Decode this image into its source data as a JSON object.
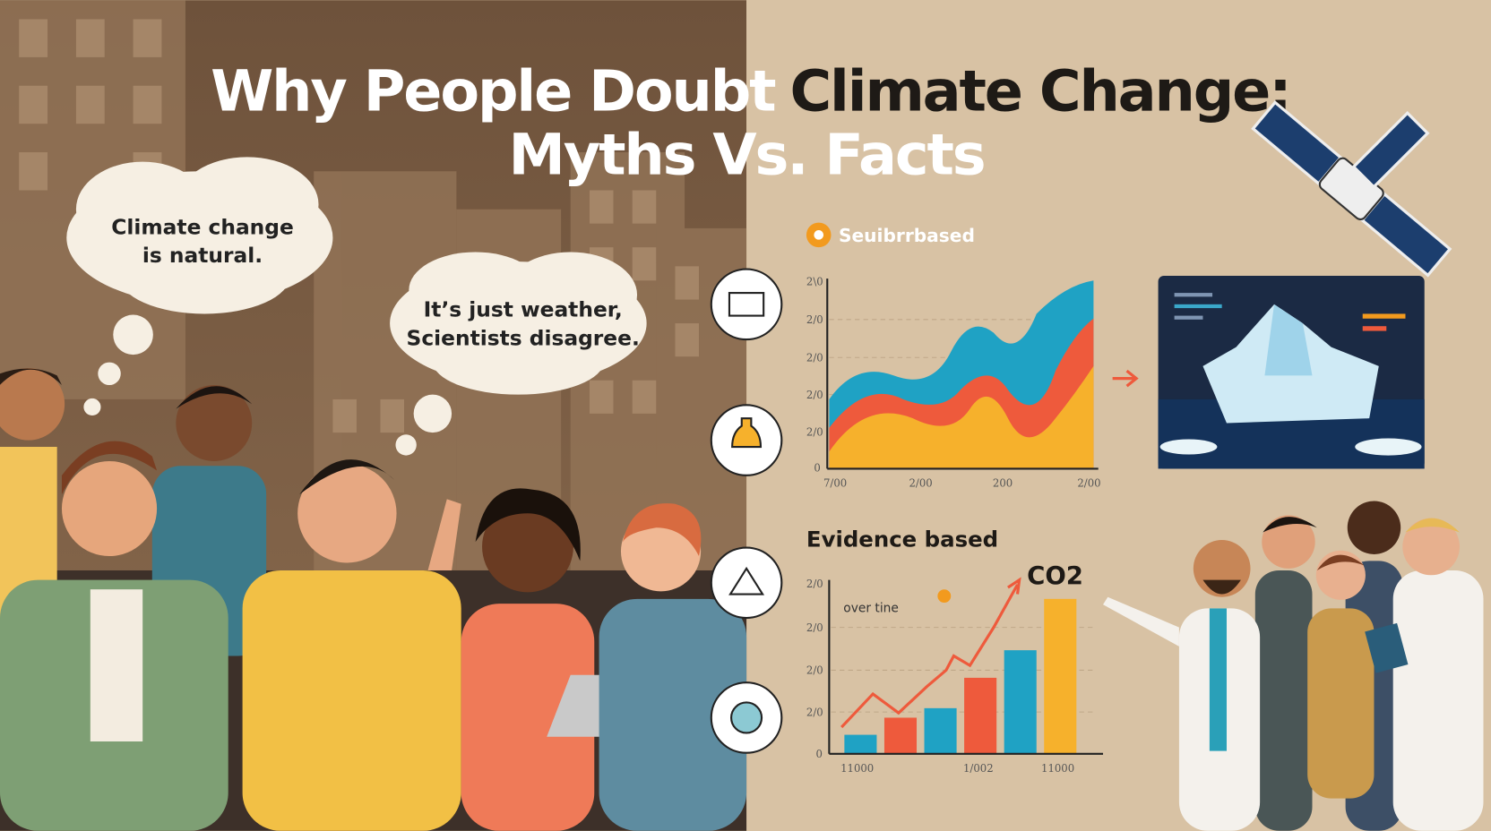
{
  "title": {
    "white": "Why People Doubt",
    "dark": "Climate Change:",
    "line2": "Myths Vs. Facts"
  },
  "thoughts": [
    {
      "lines": [
        "Climate change",
        "is natural."
      ]
    },
    {
      "lines": [
        "It’s just weather,",
        "Scientists disagree."
      ]
    }
  ],
  "upper_panel": {
    "badge": "Seuibrrbased",
    "y_labels": [
      "2\\0",
      "2/0",
      "2/0",
      "2/0",
      "2/0",
      "0"
    ],
    "x_labels": [
      "7/00",
      "2/00",
      "200",
      "2/00"
    ]
  },
  "lower_panel": {
    "heading": "Evidence based",
    "series_label": "CO2",
    "note": "over tine",
    "y_labels": [
      "2/0",
      "2/0",
      "2/0",
      "2/0",
      "0"
    ],
    "x_labels": [
      "11000",
      "1/002",
      "11000"
    ]
  }
}
